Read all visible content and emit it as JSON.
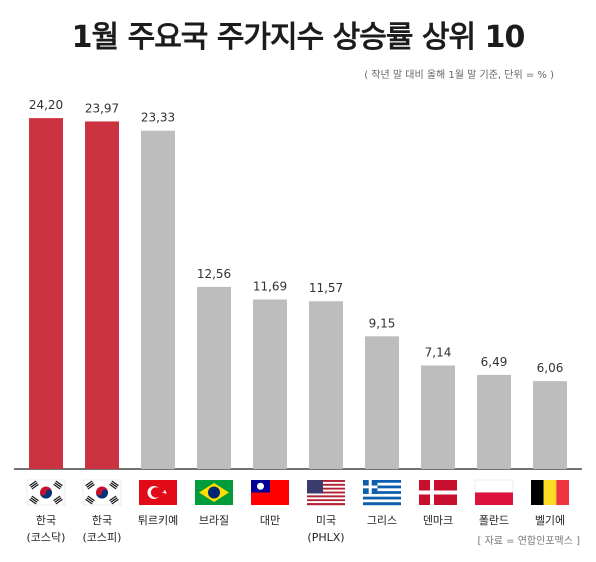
{
  "title": "1월 주요국 주가지수 상승률 상위 10",
  "subtitle": "( 작년 말 대비 올해 1월 말 기준, 단위 = % )",
  "source": "[ 자료 = 연합인포맥스 ]",
  "chart_data": {
    "type": "bar",
    "categories": [
      [
        "한국",
        "(코스닥)"
      ],
      [
        "한국",
        "(코스피)"
      ],
      [
        "튀르키예"
      ],
      [
        "브라질"
      ],
      [
        "대만"
      ],
      [
        "미국",
        "(PHLX)"
      ],
      [
        "그리스"
      ],
      [
        "덴마크"
      ],
      [
        "폴란드"
      ],
      [
        "벨기에"
      ]
    ],
    "values": [
      24.2,
      23.97,
      23.33,
      12.56,
      11.69,
      11.57,
      9.15,
      7.14,
      6.49,
      6.06
    ],
    "value_labels": [
      "24,20",
      "23,97",
      "23,33",
      "12,56",
      "11,69",
      "11,57",
      "9,15",
      "7,14",
      "6,49",
      "6,06"
    ],
    "highlight_color": "#cc3340",
    "base_color": "#bdbdbd",
    "flags": [
      "korea-flag",
      "korea-flag",
      "turkey-flag",
      "brazil-flag",
      "taiwan-flag",
      "usa-flag",
      "greece-flag",
      "denmark-flag",
      "poland-flag",
      "belgium-flag"
    ],
    "ylim": [
      0,
      26
    ],
    "grid": false
  }
}
